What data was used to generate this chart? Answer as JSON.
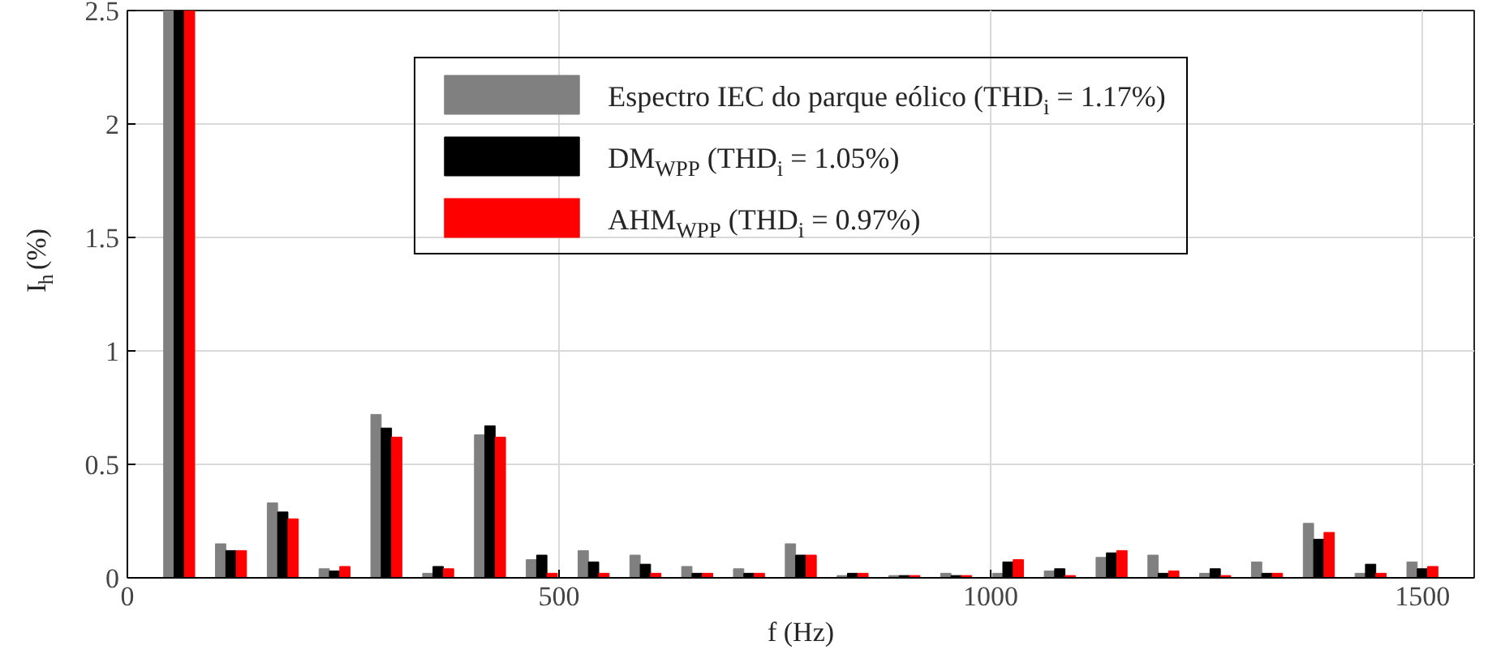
{
  "chart_data": {
    "type": "bar",
    "xlabel": "f (Hz)",
    "ylabel": "I$_{h}$ (%)",
    "x": [
      60,
      120,
      180,
      240,
      300,
      360,
      420,
      480,
      540,
      600,
      660,
      720,
      780,
      840,
      900,
      960,
      1020,
      1080,
      1140,
      1200,
      1260,
      1320,
      1380,
      1440,
      1500
    ],
    "series": [
      {
        "name": "Espectro IEC do parque eólico (THD$_{i}$ = 1.17%)",
        "color": "#808080",
        "values": [
          2.5,
          0.15,
          0.33,
          0.04,
          0.72,
          0.02,
          0.63,
          0.08,
          0.12,
          0.1,
          0.05,
          0.04,
          0.15,
          0.01,
          0.01,
          0.02,
          0.02,
          0.03,
          0.09,
          0.1,
          0.02,
          0.07,
          0.24,
          0.02,
          0.07
        ]
      },
      {
        "name": "DM$_{WPP}$ (THD$_{i}$ = 1.05%)",
        "color": "#000000",
        "values": [
          2.5,
          0.12,
          0.29,
          0.03,
          0.66,
          0.05,
          0.67,
          0.1,
          0.07,
          0.06,
          0.02,
          0.02,
          0.1,
          0.02,
          0.01,
          0.01,
          0.07,
          0.04,
          0.11,
          0.02,
          0.04,
          0.02,
          0.17,
          0.06,
          0.04
        ]
      },
      {
        "name": "AHM$_{WPP}$ (THD$_{i}$ = 0.97%)",
        "color": "#ff0000",
        "values": [
          2.5,
          0.12,
          0.26,
          0.05,
          0.62,
          0.04,
          0.62,
          0.02,
          0.02,
          0.02,
          0.02,
          0.02,
          0.1,
          0.02,
          0.01,
          0.01,
          0.08,
          0.01,
          0.12,
          0.03,
          0.01,
          0.02,
          0.2,
          0.02,
          0.05
        ]
      }
    ],
    "xlim": [
      0,
      1560
    ],
    "xticks": [
      0,
      500,
      1000,
      1500
    ],
    "ylim": [
      0,
      2.5
    ],
    "yticks": [
      0,
      0.5,
      1,
      1.5,
      2,
      2.5
    ],
    "grid": true,
    "legend": "top"
  }
}
